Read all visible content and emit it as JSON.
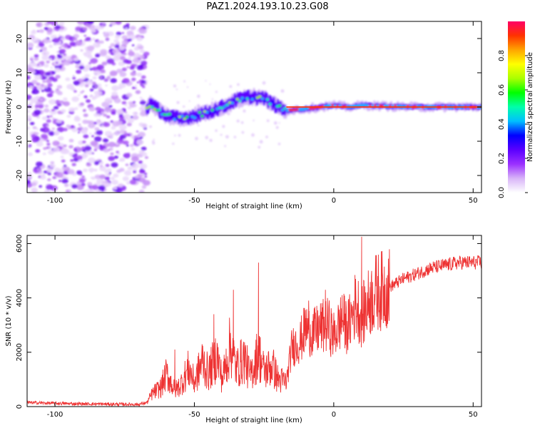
{
  "title": "PAZ1.2024.193.10.23.G08",
  "chart_data": [
    {
      "type": "heatmap",
      "xlabel": "Height of straight line (km)",
      "ylabel": "Frequency (Hz)",
      "xlim": [
        -110,
        53
      ],
      "ylim": [
        -25,
        25
      ],
      "xticks": [
        -100,
        -50,
        0,
        50
      ],
      "yticks": [
        -20,
        -10,
        0,
        10,
        20
      ],
      "colorbar": {
        "label": "Normalized spectral amplitude",
        "range": [
          0,
          1
        ],
        "ticks": [
          "0.0",
          "0.2",
          "0.4",
          "0.6",
          "0.8"
        ],
        "colors": [
          "#ffffff",
          "#d8b4f8",
          "#9b30ff",
          "#5a00ff",
          "#0000ff",
          "#00bfff",
          "#00ffaa",
          "#00ff00",
          "#aaff00",
          "#ffff00",
          "#ffa500",
          "#ff3300",
          "#ff0066"
        ]
      },
      "regions": [
        {
          "name": "noise",
          "x": [
            -110,
            -67
          ],
          "freq_spread": [
            -25,
            25
          ]
        },
        {
          "name": "signal-trace",
          "x": [
            -67,
            53
          ],
          "trace_x": [
            -66,
            -60,
            -55,
            -50,
            -45,
            -40,
            -35,
            -30,
            -25,
            -20,
            -17,
            -10,
            -5,
            0,
            5,
            10,
            20,
            30,
            40,
            53
          ],
          "trace_freq": [
            1,
            -2.5,
            -3.5,
            -2.5,
            -1.5,
            0,
            2,
            3,
            2.5,
            0,
            -1,
            -0.5,
            0,
            0.5,
            0,
            0.5,
            0.2,
            0,
            0,
            0
          ]
        }
      ]
    },
    {
      "type": "line",
      "xlabel": "Height of straight line (km)",
      "ylabel": "SNR (10 * v/v)",
      "xlim": [
        -110,
        53
      ],
      "ylim": [
        0,
        6300
      ],
      "xticks": [
        -100,
        -50,
        0,
        50
      ],
      "yticks": [
        0,
        2000,
        4000,
        6000
      ],
      "color": "#ee3333",
      "x": [
        -110,
        -100,
        -90,
        -80,
        -70,
        -67,
        -65,
        -62,
        -60,
        -57,
        -55,
        -52,
        -50,
        -47,
        -45,
        -42,
        -40,
        -37,
        -35,
        -32,
        -30,
        -27,
        -25,
        -22,
        -20,
        -17,
        -15,
        -12,
        -10,
        -7,
        -5,
        -2,
        0,
        3,
        5,
        8,
        10,
        13,
        15,
        18,
        20,
        25,
        30,
        35,
        40,
        45,
        50,
        53
      ],
      "y": [
        150,
        120,
        100,
        90,
        80,
        150,
        500,
        700,
        1200,
        600,
        800,
        1400,
        900,
        1700,
        1200,
        1900,
        1000,
        2300,
        1400,
        1800,
        1100,
        2000,
        1300,
        1500,
        1000,
        900,
        2200,
        2400,
        2900,
        2700,
        2900,
        3000,
        2600,
        3200,
        2900,
        3800,
        3300,
        3900,
        4200,
        4300,
        4400,
        4700,
        4900,
        5100,
        5200,
        5300,
        5300,
        5300
      ],
      "spikes": [
        {
          "x": -57,
          "y": 2100
        },
        {
          "x": -43,
          "y": 3400
        },
        {
          "x": -36,
          "y": 4300
        },
        {
          "x": -27,
          "y": 5300
        },
        {
          "x": -9,
          "y": 3900
        },
        {
          "x": -3,
          "y": 4300
        },
        {
          "x": 3,
          "y": 4100
        },
        {
          "x": 10,
          "y": 6250
        },
        {
          "x": 13,
          "y": 4400
        }
      ]
    }
  ]
}
